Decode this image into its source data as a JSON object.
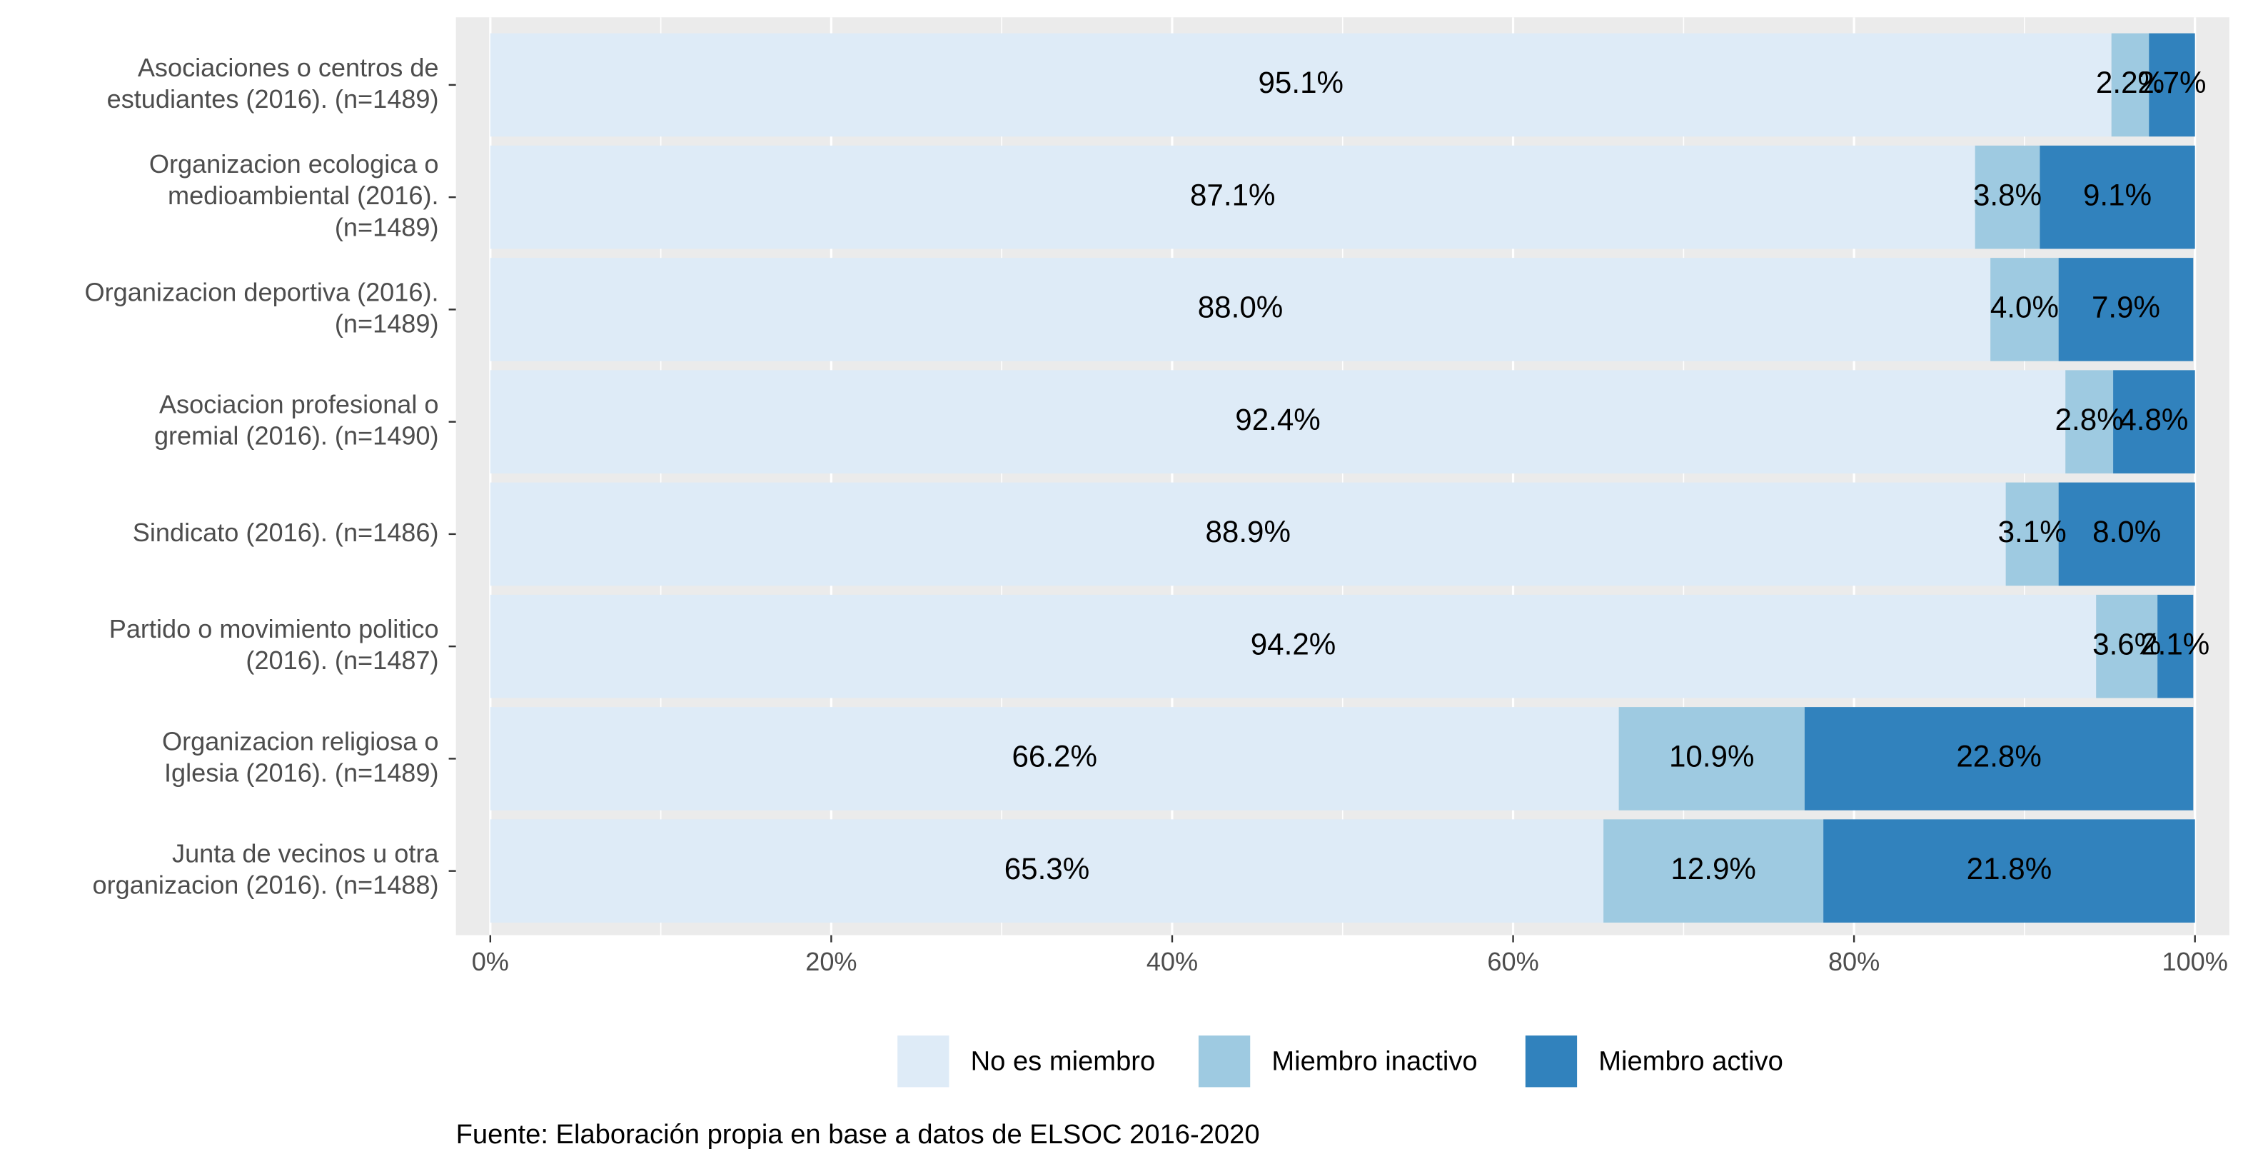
{
  "chart_data": {
    "type": "stacked_barh",
    "categories": [
      "Asociaciones o centros de\nestudiantes (2016). (n=1489)",
      "Organizacion ecologica o\nmedioambiental (2016).\n(n=1489)",
      "Organizacion deportiva (2016).\n(n=1489)",
      "Asociacion profesional o\ngremial (2016). (n=1490)",
      "Sindicato (2016). (n=1486)",
      "Partido o movimiento politico\n(2016). (n=1487)",
      "Organizacion religiosa o\nIglesia (2016). (n=1489)",
      "Junta de vecinos u otra\norganizacion (2016). (n=1488)"
    ],
    "series": [
      {
        "name": "No es miembro",
        "color": "#deebf7",
        "values": [
          95.1,
          87.1,
          88.0,
          92.4,
          88.9,
          94.2,
          66.2,
          65.3
        ],
        "value_labels": [
          "95.1%",
          "87.1%",
          "88.0%",
          "92.4%",
          "88.9%",
          "94.2%",
          "66.2%",
          "65.3%"
        ]
      },
      {
        "name": "Miembro inactivo",
        "color": "#9ecae1",
        "values": [
          2.2,
          3.8,
          4.0,
          2.8,
          3.1,
          3.6,
          10.9,
          12.9
        ],
        "value_labels": [
          "2.2%",
          "3.8%",
          "4.0%",
          "2.8%",
          "3.1%",
          "3.6%",
          "10.9%",
          "12.9%"
        ]
      },
      {
        "name": "Miembro activo",
        "color": "#3182bd",
        "values": [
          2.7,
          9.1,
          7.9,
          4.8,
          8.0,
          2.1,
          22.8,
          21.8
        ],
        "value_labels": [
          "2.7%",
          "9.1%",
          "7.9%",
          "4.8%",
          "8.0%",
          "2.1%",
          "22.8%",
          "21.8%"
        ]
      }
    ],
    "xlim": [
      0,
      100
    ],
    "xticks": [
      {
        "value": 0,
        "label": "0%"
      },
      {
        "value": 20,
        "label": "20%"
      },
      {
        "value": 40,
        "label": "40%"
      },
      {
        "value": 60,
        "label": "60%"
      },
      {
        "value": 80,
        "label": "80%"
      },
      {
        "value": 100,
        "label": "100%"
      }
    ],
    "grid": true,
    "legend": "bottom",
    "caption": "Fuente: Elaboración propia en base a datos de ELSOC 2016-2020"
  }
}
